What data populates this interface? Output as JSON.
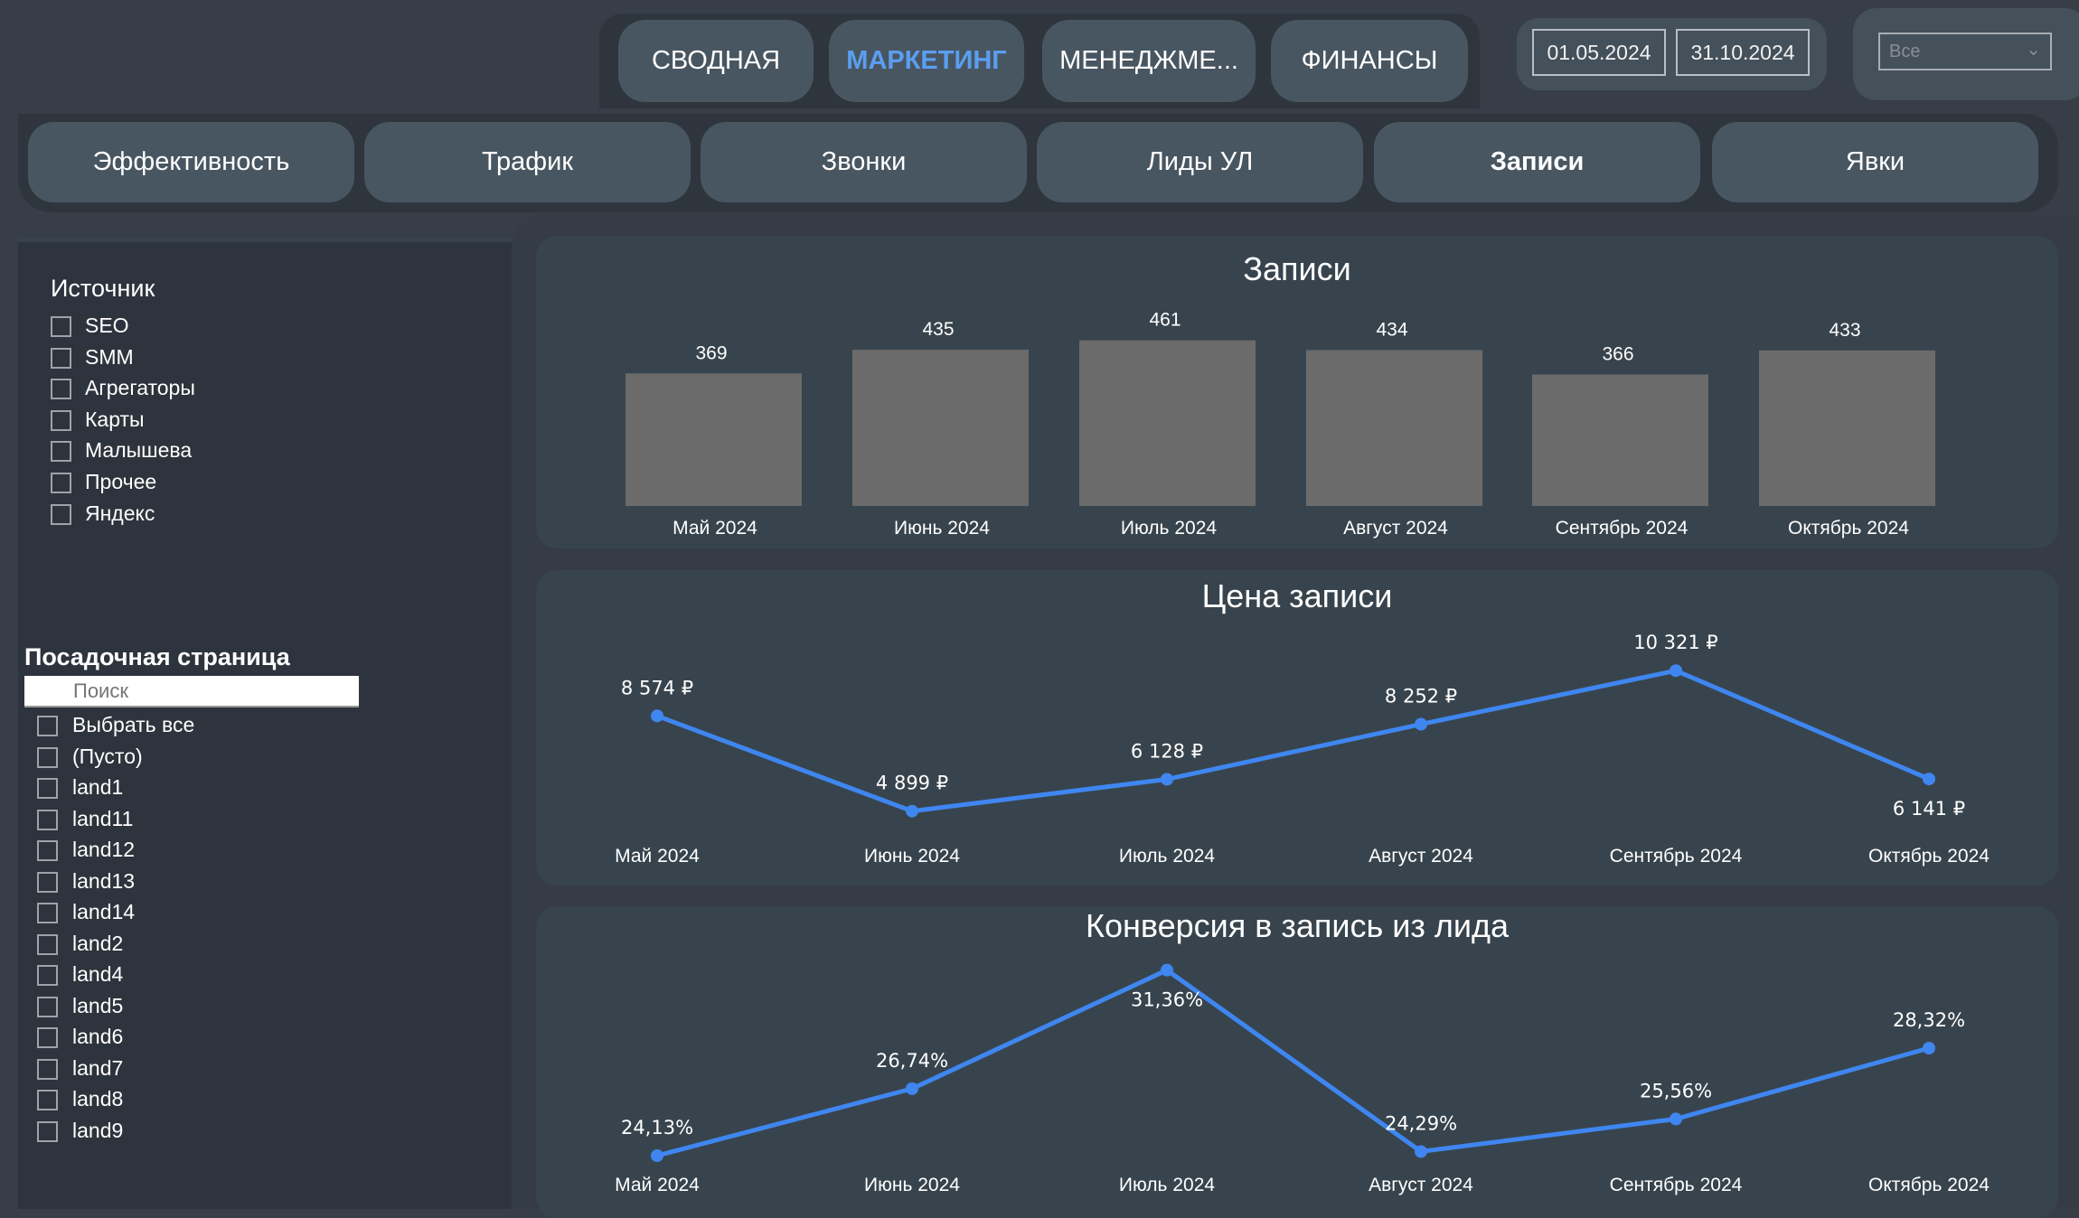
{
  "top_nav": {
    "items": [
      {
        "label": "СВОДНАЯ",
        "active": false
      },
      {
        "label": "МАРКЕТИНГ",
        "active": true
      },
      {
        "label": "МЕНЕДЖМЕ...",
        "active": false
      },
      {
        "label": "ФИНАНСЫ",
        "active": false
      }
    ]
  },
  "date_range": {
    "start": "01.05.2024",
    "end": "31.10.2024"
  },
  "dropdown": {
    "value": "Все"
  },
  "sub_tabs": {
    "items": [
      {
        "label": "Эффективность",
        "active": false
      },
      {
        "label": "Трафик",
        "active": false
      },
      {
        "label": "Звонки",
        "active": false
      },
      {
        "label": "Лиды УЛ",
        "active": false
      },
      {
        "label": "Записи",
        "active": true
      },
      {
        "label": "Явки",
        "active": false
      }
    ]
  },
  "filters": {
    "source": {
      "title": "Источник",
      "items": [
        "SEO",
        "SMM",
        "Агрегаторы",
        "Карты",
        "Малышева",
        "Прочее",
        "Яндекс"
      ]
    },
    "landing": {
      "title": "Посадочная страница",
      "search_placeholder": "Поиск",
      "items": [
        "Выбрать все",
        "(Пусто)",
        "land1",
        "land11",
        "land12",
        "land13",
        "land14",
        "land2",
        "land4",
        "land5",
        "land6",
        "land7",
        "land8",
        "land9"
      ]
    }
  },
  "colors": {
    "accent": "#5b9ef0",
    "line": "#3f86f0",
    "bar": "#6b6b6b"
  },
  "chart_data": [
    {
      "type": "bar",
      "title": "Записи",
      "categories": [
        "Май 2024",
        "Июнь 2024",
        "Июль 2024",
        "Август 2024",
        "Сентябрь 2024",
        "Октябрь 2024"
      ],
      "values": [
        369,
        435,
        461,
        434,
        366,
        433
      ],
      "labels": [
        "369",
        "435",
        "461",
        "434",
        "366",
        "433"
      ]
    },
    {
      "type": "line",
      "title": "Цена записи",
      "categories": [
        "Май 2024",
        "Июнь 2024",
        "Июль 2024",
        "Август 2024",
        "Сентябрь 2024",
        "Октябрь 2024"
      ],
      "values": [
        8574,
        4899,
        6128,
        8252,
        10321,
        6141
      ],
      "labels": [
        "8 574 ₽",
        "4 899 ₽",
        "6 128 ₽",
        "8 252 ₽",
        "10 321 ₽",
        "6 141 ₽"
      ]
    },
    {
      "type": "line",
      "title": "Конверсия в запись из лида",
      "categories": [
        "Май 2024",
        "Июнь 2024",
        "Июль 2024",
        "Август 2024",
        "Сентябрь 2024",
        "Октябрь 2024"
      ],
      "values": [
        24.13,
        26.74,
        31.36,
        24.29,
        25.56,
        28.32
      ],
      "labels": [
        "24,13%",
        "26,74%",
        "31,36%",
        "24,29%",
        "25,56%",
        "28,32%"
      ]
    }
  ]
}
